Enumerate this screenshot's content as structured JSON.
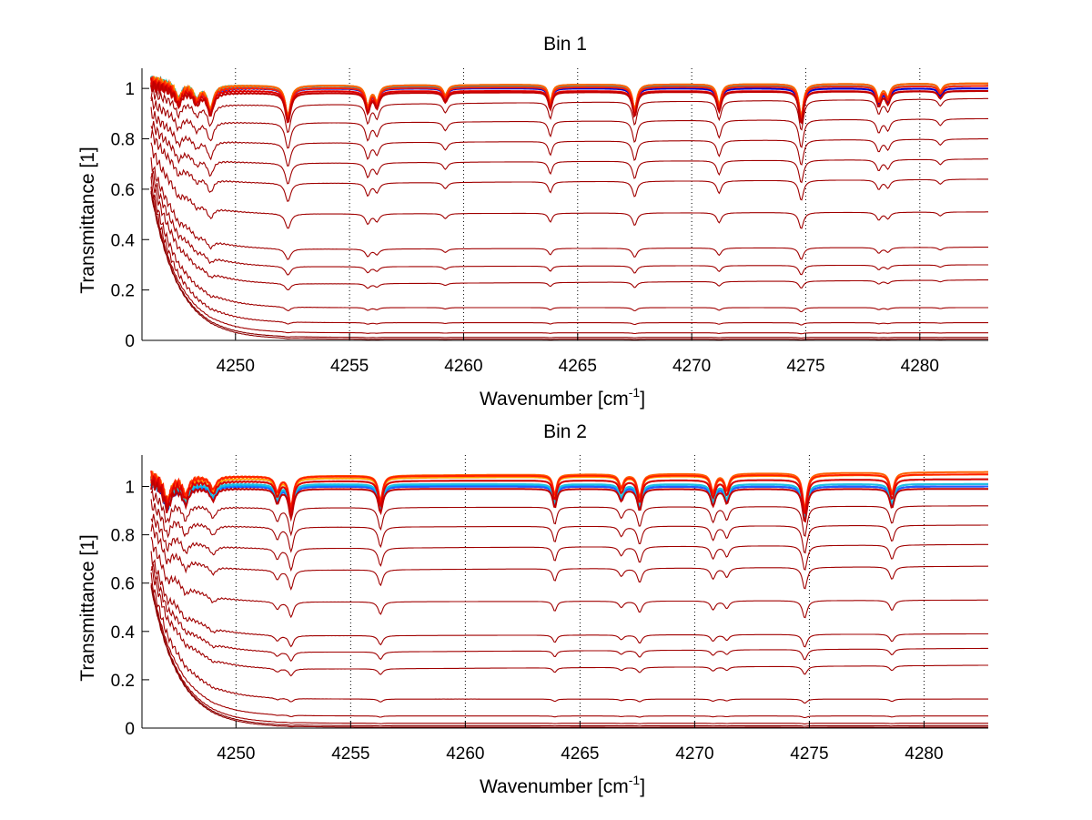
{
  "chart_data": [
    {
      "type": "line",
      "title": "Bin 1",
      "xlabel": "Wavenumber [cm",
      "xlabel_sup": "-1",
      "xlabel_end": "]",
      "ylabel": "Transmittance [1]",
      "xlim": [
        4245.9,
        4283
      ],
      "ylim": [
        0,
        1.08
      ],
      "xticks": [
        4250,
        4255,
        4260,
        4265,
        4270,
        4275,
        4280
      ],
      "xtick_labels": [
        "4250",
        "4255",
        "4260",
        "4265",
        "4270",
        "4275",
        "4280"
      ],
      "yticks": [
        0,
        0.2,
        0.4,
        0.6,
        0.8,
        1
      ],
      "ytick_labels": [
        "0",
        "0.2",
        "0.4",
        "0.6",
        "0.8",
        "1"
      ],
      "grid": "x dotted",
      "line_start_x": 4246.3,
      "absorption_lines": [
        {
          "x": 4247.5,
          "depth": 0.06,
          "width": 0.16
        },
        {
          "x": 4248.3,
          "depth": 0.05,
          "width": 0.16
        },
        {
          "x": 4248.9,
          "depth": 0.09,
          "width": 0.16
        },
        {
          "x": 4252.3,
          "depth": 0.12,
          "width": 0.14
        },
        {
          "x": 4255.8,
          "depth": 0.08,
          "width": 0.12
        },
        {
          "x": 4256.2,
          "depth": 0.06,
          "width": 0.12
        },
        {
          "x": 4259.2,
          "depth": 0.04,
          "width": 0.12
        },
        {
          "x": 4263.8,
          "depth": 0.07,
          "width": 0.1
        },
        {
          "x": 4267.5,
          "depth": 0.1,
          "width": 0.12
        },
        {
          "x": 4271.2,
          "depth": 0.08,
          "width": 0.12
        },
        {
          "x": 4274.8,
          "depth": 0.13,
          "width": 0.12
        },
        {
          "x": 4278.2,
          "depth": 0.06,
          "width": 0.12
        },
        {
          "x": 4278.6,
          "depth": 0.05,
          "width": 0.12
        },
        {
          "x": 4280.9,
          "depth": 0.03,
          "width": 0.12
        }
      ],
      "series": [
        {
          "level": 1.0,
          "end": 1.0,
          "color": "#0000cc"
        },
        {
          "level": 1.0,
          "end": 1.01,
          "color": "#1f5fff"
        },
        {
          "level": 1.01,
          "end": 1.01,
          "color": "#00a0d0"
        },
        {
          "level": 1.01,
          "end": 1.02,
          "color": "#30c0a0"
        },
        {
          "level": 1.01,
          "end": 1.02,
          "color": "#ffa000"
        },
        {
          "level": 1.01,
          "end": 1.02,
          "color": "#ff6000"
        },
        {
          "level": 1.0,
          "end": 1.01,
          "color": "#ff2000"
        },
        {
          "level": 0.99,
          "end": 0.99,
          "color": "#e00000"
        },
        {
          "level": 0.98,
          "end": 0.99,
          "color": "#c00000"
        },
        {
          "level": 0.93,
          "end": 0.96,
          "color": "#a00000"
        },
        {
          "level": 0.86,
          "end": 0.88,
          "color": "#a00000"
        },
        {
          "level": 0.78,
          "end": 0.8,
          "color": "#a00000"
        },
        {
          "level": 0.7,
          "end": 0.72,
          "color": "#a00000"
        },
        {
          "level": 0.62,
          "end": 0.64,
          "color": "#a00000"
        },
        {
          "level": 0.5,
          "end": 0.51,
          "color": "#a00000"
        },
        {
          "level": 0.36,
          "end": 0.37,
          "color": "#a00000"
        },
        {
          "level": 0.29,
          "end": 0.3,
          "color": "#a00000"
        },
        {
          "level": 0.22,
          "end": 0.24,
          "color": "#a00000"
        },
        {
          "level": 0.13,
          "end": 0.13,
          "color": "#a00000"
        },
        {
          "level": 0.07,
          "end": 0.07,
          "color": "#a00000"
        },
        {
          "level": 0.03,
          "end": 0.03,
          "color": "#a00000"
        },
        {
          "level": 0.012,
          "end": 0.012,
          "color": "#8b0000"
        },
        {
          "level": 0.005,
          "end": 0.005,
          "color": "#8b0000"
        }
      ]
    },
    {
      "type": "line",
      "title": "Bin 2",
      "xlabel": "Wavenumber [cm",
      "xlabel_sup": "-1",
      "xlabel_end": "]",
      "ylabel": "Transmittance [1]",
      "xlim": [
        4245.9,
        4282.8
      ],
      "ylim": [
        0,
        1.13
      ],
      "xticks": [
        4250,
        4255,
        4260,
        4265,
        4270,
        4275,
        4280
      ],
      "xtick_labels": [
        "4250",
        "4255",
        "4260",
        "4265",
        "4270",
        "4275",
        "4280"
      ],
      "yticks": [
        0,
        0.2,
        0.4,
        0.6,
        0.8,
        1
      ],
      "ytick_labels": [
        "0",
        "0.2",
        "0.4",
        "0.6",
        "0.8",
        "1"
      ],
      "grid": "x dotted",
      "line_start_x": 4246.3,
      "absorption_lines": [
        {
          "x": 4247.0,
          "depth": 0.1,
          "width": 0.18
        },
        {
          "x": 4247.8,
          "depth": 0.07,
          "width": 0.16
        },
        {
          "x": 4249.0,
          "depth": 0.05,
          "width": 0.16
        },
        {
          "x": 4251.8,
          "depth": 0.06,
          "width": 0.12
        },
        {
          "x": 4252.4,
          "depth": 0.12,
          "width": 0.12
        },
        {
          "x": 4256.3,
          "depth": 0.1,
          "width": 0.12
        },
        {
          "x": 4263.9,
          "depth": 0.08,
          "width": 0.1
        },
        {
          "x": 4266.8,
          "depth": 0.05,
          "width": 0.12
        },
        {
          "x": 4267.6,
          "depth": 0.09,
          "width": 0.12
        },
        {
          "x": 4270.8,
          "depth": 0.07,
          "width": 0.12
        },
        {
          "x": 4271.4,
          "depth": 0.06,
          "width": 0.12
        },
        {
          "x": 4274.8,
          "depth": 0.14,
          "width": 0.12
        },
        {
          "x": 4278.6,
          "depth": 0.08,
          "width": 0.12
        }
      ],
      "series": [
        {
          "level": 1.0,
          "end": 1.0,
          "color": "#0000cc"
        },
        {
          "level": 1.0,
          "end": 1.0,
          "color": "#1f5fff"
        },
        {
          "level": 1.005,
          "end": 1.01,
          "color": "#00a0ff"
        },
        {
          "level": 1.01,
          "end": 1.01,
          "color": "#20c0e0"
        },
        {
          "level": 1.02,
          "end": 1.03,
          "color": "#30c0a0"
        },
        {
          "level": 1.03,
          "end": 1.05,
          "color": "#ffa000"
        },
        {
          "level": 1.04,
          "end": 1.06,
          "color": "#ff6000"
        },
        {
          "level": 1.04,
          "end": 1.05,
          "color": "#ff2000"
        },
        {
          "level": 1.02,
          "end": 1.03,
          "color": "#e00000"
        },
        {
          "level": 0.99,
          "end": 0.99,
          "color": "#c00000"
        },
        {
          "level": 0.91,
          "end": 0.92,
          "color": "#a00000"
        },
        {
          "level": 0.83,
          "end": 0.84,
          "color": "#a00000"
        },
        {
          "level": 0.74,
          "end": 0.76,
          "color": "#a00000"
        },
        {
          "level": 0.65,
          "end": 0.67,
          "color": "#a00000"
        },
        {
          "level": 0.52,
          "end": 0.53,
          "color": "#a00000"
        },
        {
          "level": 0.38,
          "end": 0.39,
          "color": "#a00000"
        },
        {
          "level": 0.31,
          "end": 0.33,
          "color": "#a00000"
        },
        {
          "level": 0.24,
          "end": 0.26,
          "color": "#a00000"
        },
        {
          "level": 0.12,
          "end": 0.12,
          "color": "#a00000"
        },
        {
          "level": 0.05,
          "end": 0.05,
          "color": "#a00000"
        },
        {
          "level": 0.02,
          "end": 0.02,
          "color": "#a00000"
        },
        {
          "level": 0.01,
          "end": 0.01,
          "color": "#8b0000"
        },
        {
          "level": 0.004,
          "end": 0.004,
          "color": "#8b0000"
        }
      ]
    }
  ]
}
